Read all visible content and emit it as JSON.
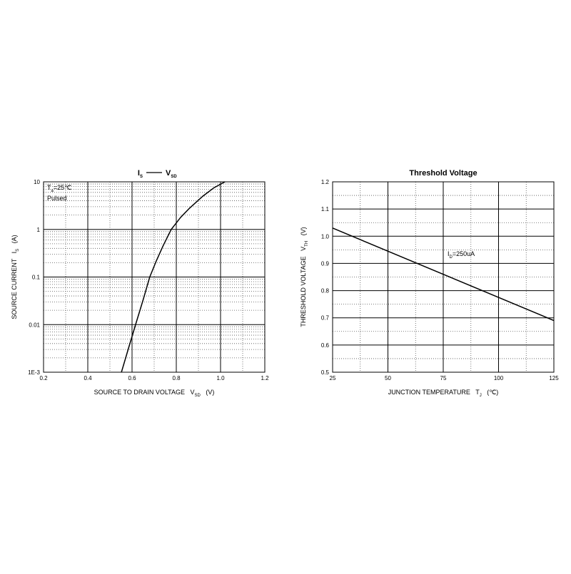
{
  "chart_data": [
    {
      "type": "line",
      "title": [
        {
          "text": "I",
          "sub": "S"
        },
        {
          "text": "V",
          "sub": "SD"
        }
      ],
      "xlabel": [
        {
          "text": "SOURCE TO DRAIN VOLTAGE   V",
          "sub": "SD"
        },
        {
          "text": "   (V)"
        }
      ],
      "ylabel": [
        {
          "text": "SOURCE CURRENT   I",
          "sub": "S"
        },
        {
          "text": "   (A)"
        }
      ],
      "annotations": [
        [
          {
            "text": "T",
            "sub": "a"
          },
          {
            "text": "=25℃"
          }
        ],
        [
          {
            "text": "Pulsed"
          }
        ]
      ],
      "xlim": [
        0.2,
        1.2
      ],
      "xticks": [
        0.2,
        0.4,
        0.6,
        0.8,
        {
          "value": 1,
          "label": "1.0"
        },
        1.2
      ],
      "ylim": [
        0.001,
        10
      ],
      "ylog": true,
      "yticks": [
        {
          "value": 0.001,
          "label": "1E-3"
        },
        0.01,
        0.1,
        1,
        10
      ],
      "grid": true,
      "series": [
        {
          "color": "#000000",
          "x": [
            0.552,
            0.585,
            0.616,
            0.65,
            0.68,
            0.71,
            0.74,
            0.777,
            0.82,
            0.86,
            0.92,
            0.97,
            1.02
          ],
          "values": [
            0.001,
            0.0033,
            0.01,
            0.033,
            0.1,
            0.22,
            0.45,
            1,
            1.8,
            2.8,
            5,
            7.5,
            10
          ]
        }
      ]
    },
    {
      "type": "line",
      "title": "Threshold Voltage",
      "xlabel": [
        {
          "text": "JUNCTION TEMPERATURE   T",
          "sub": "J"
        },
        {
          "text": "   (℃)"
        }
      ],
      "ylabel": [
        {
          "text": "THRESHOLD VOLTAGE   V",
          "sub": "TH"
        },
        {
          "text": "   (V)"
        }
      ],
      "annotations": [
        [
          {
            "text": "I",
            "sub": "D"
          },
          {
            "text": "=250uA"
          }
        ]
      ],
      "xlim": [
        25,
        125
      ],
      "xticks": [
        25,
        50,
        75,
        100,
        125
      ],
      "ylim": [
        0.5,
        1.2
      ],
      "ylog": false,
      "yticks": [
        0.5,
        0.6,
        0.7,
        0.8,
        0.9,
        {
          "value": 1,
          "label": "1.0"
        },
        1.1,
        1.2
      ],
      "grid": true,
      "series": [
        {
          "color": "#000000",
          "x": [
            25,
            125
          ],
          "values": [
            1.03,
            0.69
          ]
        }
      ]
    }
  ]
}
